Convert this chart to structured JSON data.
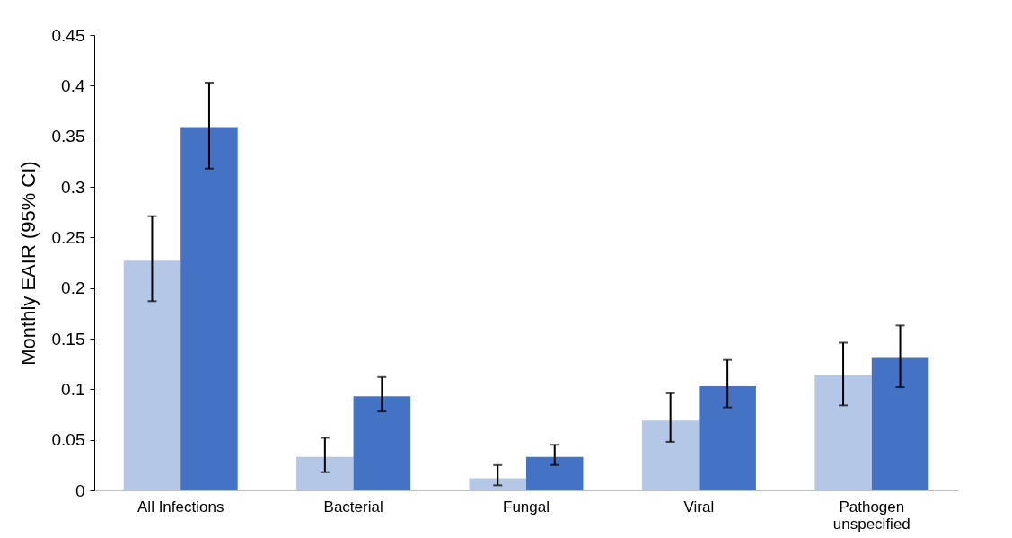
{
  "chart_data": {
    "type": "bar",
    "ylabel": "Monthly EAIR (95% CI)",
    "categories": [
      "All Infections",
      "Bacterial",
      "Fungal",
      "Viral",
      "Pathogen unspecified"
    ],
    "series": [
      {
        "color": "#b4c7e7",
        "values": [
          0.227,
          0.033,
          0.012,
          0.069,
          0.114
        ],
        "errors": [
          [
            0.187,
            0.271
          ],
          [
            0.018,
            0.052
          ],
          [
            0.005,
            0.025
          ],
          [
            0.048,
            0.096
          ],
          [
            0.084,
            0.146
          ]
        ]
      },
      {
        "color": "#4472c4",
        "values": [
          0.359,
          0.093,
          0.033,
          0.103,
          0.131
        ],
        "errors": [
          [
            0.318,
            0.403
          ],
          [
            0.078,
            0.112
          ],
          [
            0.025,
            0.045
          ],
          [
            0.082,
            0.129
          ],
          [
            0.102,
            0.163
          ]
        ]
      }
    ],
    "ylim": [
      0,
      0.45
    ],
    "yticks": [
      0,
      0.05,
      0.1,
      0.15,
      0.2,
      0.25,
      0.3,
      0.35,
      0.4,
      0.45
    ],
    "grid": false,
    "legend": false
  }
}
